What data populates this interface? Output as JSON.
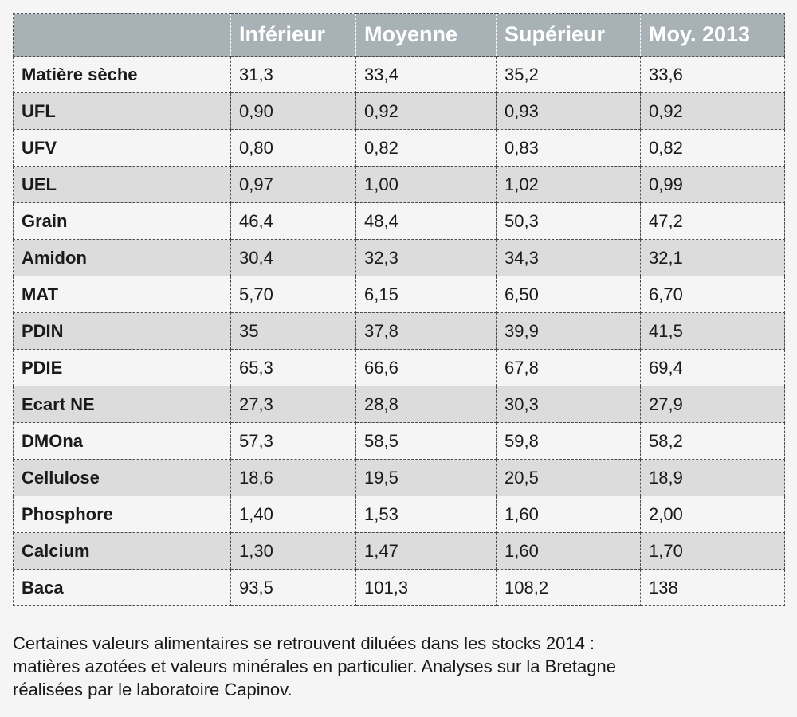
{
  "table": {
    "headers": [
      "",
      "Inférieur",
      "Moyenne",
      "Supérieur",
      "Moy. 2013"
    ],
    "rows": [
      {
        "label": "Matière sèche",
        "values": [
          "31,3",
          "33,4",
          "35,2",
          "33,6"
        ]
      },
      {
        "label": "UFL",
        "values": [
          "0,90",
          "0,92",
          "0,93",
          "0,92"
        ]
      },
      {
        "label": "UFV",
        "values": [
          "0,80",
          "0,82",
          "0,83",
          "0,82"
        ]
      },
      {
        "label": "UEL",
        "values": [
          "0,97",
          "1,00",
          "1,02",
          "0,99"
        ]
      },
      {
        "label": "Grain",
        "values": [
          "46,4",
          "48,4",
          "50,3",
          "47,2"
        ]
      },
      {
        "label": "Amidon",
        "values": [
          "30,4",
          "32,3",
          "34,3",
          "32,1"
        ]
      },
      {
        "label": "MAT",
        "values": [
          "5,70",
          "6,15",
          "6,50",
          "6,70"
        ]
      },
      {
        "label": "PDIN",
        "values": [
          "35",
          "37,8",
          "39,9",
          "41,5"
        ]
      },
      {
        "label": "PDIE",
        "values": [
          "65,3",
          "66,6",
          "67,8",
          "69,4"
        ]
      },
      {
        "label": "Ecart NE",
        "values": [
          "27,3",
          "28,8",
          "30,3",
          "27,9"
        ]
      },
      {
        "label": "DMOna",
        "values": [
          "57,3",
          "58,5",
          "59,8",
          "58,2"
        ]
      },
      {
        "label": "Cellulose",
        "values": [
          "18,6",
          "19,5",
          "20,5",
          "18,9"
        ]
      },
      {
        "label": "Phosphore",
        "values": [
          "1,40",
          "1,53",
          "1,60",
          "2,00"
        ]
      },
      {
        "label": "Calcium",
        "values": [
          "1,30",
          "1,47",
          "1,60",
          "1,70"
        ]
      },
      {
        "label": "Baca",
        "values": [
          "93,5",
          "101,3",
          "108,2",
          "138"
        ]
      }
    ]
  },
  "caption": {
    "lines": [
      "Certaines valeurs alimentaires se retrouvent diluées dans les stocks 2014 :",
      "matières azotées et valeurs minérales en particulier.  Analyses sur la Bretagne",
      "réalisées par le laboratoire Capinov."
    ]
  }
}
